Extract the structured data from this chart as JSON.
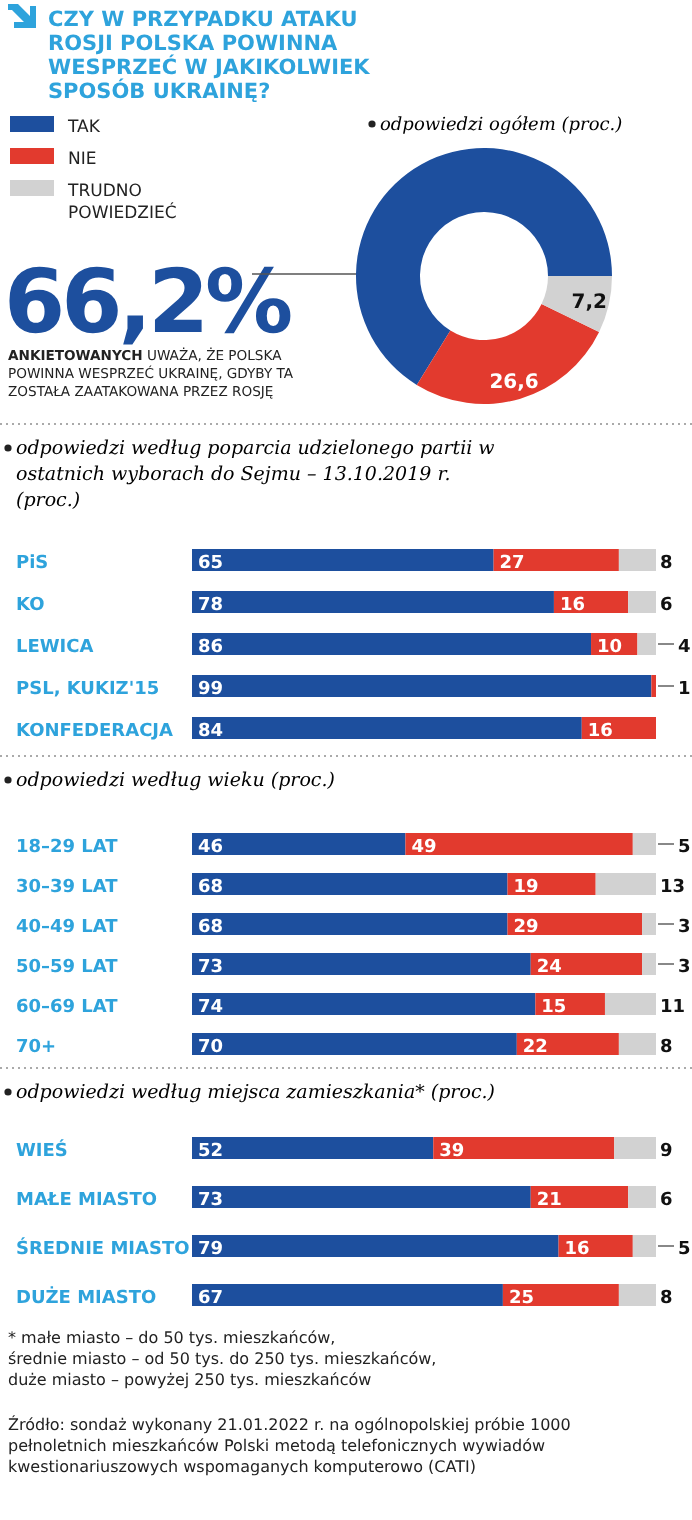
{
  "chart_data": [
    {
      "type": "donut",
      "title": "CZY W PRZYPADKU ATAKU ROSJI POLSKA POWINNA WESPRZEĆ W JAKIKOLWIEK SPOSÓB UKRAINĘ?",
      "subtitle": "odpowiedzi ogółem (proc.)",
      "categories": [
        "TAK",
        "NIE",
        "TRUDNO POWIEDZIEĆ"
      ],
      "values": [
        66.2,
        26.6,
        7.2
      ],
      "value_labels": [
        "66,2%",
        "26,6",
        "7,2"
      ],
      "colors": [
        "#1d4f9e",
        "#e23a2e",
        "#d2d2d2"
      ],
      "legend": "top left",
      "annotations": [
        "ANKIETOWANYCH UWAŻA, ŻE POLSKA POWINNA WESPRZEĆ UKRAINĘ, GDYBY TA ZOSTAŁA ZAATAKOWANA PRZEZ ROSJĘ"
      ]
    },
    {
      "type": "bar",
      "orientation": "horizontal",
      "stacked": true,
      "data_labels": true,
      "subtitle": "odpowiedzi według poparcia udzielonego partii w ostatnich wyborach do Sejmu – 13.10.2019 r. (proc.)",
      "categories": [
        "PiS",
        "KO",
        "LEWICA",
        "PSL, KUKIZ'15",
        "KONFEDERACJA"
      ],
      "series": [
        {
          "color": "#1d4f9e",
          "values": [
            65,
            78,
            86,
            99,
            84
          ]
        },
        {
          "color": "#e23a2e",
          "values": [
            27,
            16,
            10,
            1,
            16
          ]
        },
        {
          "color": "#d2d2d2",
          "values": [
            8,
            6,
            4,
            null,
            null
          ]
        }
      ]
    },
    {
      "type": "bar",
      "orientation": "horizontal",
      "stacked": true,
      "data_labels": true,
      "subtitle": "odpowiedzi według wieku (proc.)",
      "categories": [
        "18–29 LAT",
        "30–39 LAT",
        "40–49 LAT",
        "50–59 LAT",
        "60–69 LAT",
        "70+"
      ],
      "series": [
        {
          "color": "#1d4f9e",
          "values": [
            46,
            68,
            68,
            73,
            74,
            70
          ]
        },
        {
          "color": "#e23a2e",
          "values": [
            49,
            19,
            29,
            24,
            15,
            22
          ]
        },
        {
          "color": "#d2d2d2",
          "values": [
            5,
            13,
            3,
            3,
            11,
            8
          ]
        }
      ]
    },
    {
      "type": "bar",
      "orientation": "horizontal",
      "stacked": true,
      "data_labels": true,
      "subtitle": "odpowiedzi według miejsca zamieszkania* (proc.)",
      "categories": [
        "WIEŚ",
        "MAŁE MIASTO",
        "ŚREDNIE MIASTO",
        "DUŻE MIASTO"
      ],
      "series": [
        {
          "color": "#1d4f9e",
          "values": [
            52,
            73,
            79,
            67
          ]
        },
        {
          "color": "#e23a2e",
          "values": [
            39,
            21,
            16,
            25
          ]
        },
        {
          "color": "#d2d2d2",
          "values": [
            9,
            6,
            5,
            8
          ]
        }
      ],
      "annotations": [
        "* małe miasto – do 50 tys. mieszkańców,",
        "średnie miasto – od 50 tys. do 250 tys. mieszkańców,",
        "duże miasto – powyżej 250 tys. mieszkańców",
        "Źródło: sondaż wykonany 21.01.2022 r. na ogólnopolskiej próbie 1000 pełnoletnich mieszkańców Polski metodą telefonicznych wywiadów kwestionariuszowych wspomaganych komputerowo (CATI)"
      ]
    }
  ]
}
